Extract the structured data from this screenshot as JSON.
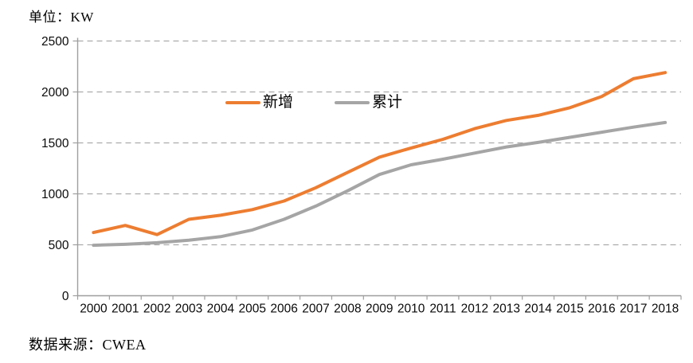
{
  "unit_label": "单位：KW",
  "source_label": "数据来源：CWEA",
  "colors": {
    "series_new": "#ED7D31",
    "series_cumulative": "#A5A5A5",
    "gridline": "#ABABAB",
    "axis": "#9E9E9E",
    "text": "#000000"
  },
  "chart_data": {
    "type": "line",
    "title": "单位：KW",
    "xlabel": "",
    "ylabel": "KW",
    "source": "数据来源：CWEA",
    "categories": [
      "2000",
      "2001",
      "2002",
      "2003",
      "2004",
      "2005",
      "2006",
      "2007",
      "2008",
      "2009",
      "2010",
      "2011",
      "2012",
      "2013",
      "2014",
      "2015",
      "2016",
      "2017",
      "2018"
    ],
    "series": [
      {
        "name": "新增",
        "color": "#ED7D31",
        "values": [
          620,
          690,
          600,
          750,
          790,
          845,
          930,
          1060,
          1210,
          1360,
          1450,
          1535,
          1640,
          1720,
          1770,
          1845,
          1955,
          2130,
          2190
        ]
      },
      {
        "name": "累计",
        "color": "#A5A5A5",
        "values": [
          495,
          505,
          520,
          545,
          580,
          645,
          750,
          880,
          1030,
          1190,
          1285,
          1340,
          1400,
          1460,
          1505,
          1555,
          1605,
          1655,
          1700
        ]
      }
    ],
    "ylim": [
      0,
      2500
    ],
    "yticks": [
      0,
      500,
      1000,
      1500,
      2000,
      2500
    ],
    "grid": "horizontal-dashed",
    "legend_position": "inside-top-center"
  }
}
